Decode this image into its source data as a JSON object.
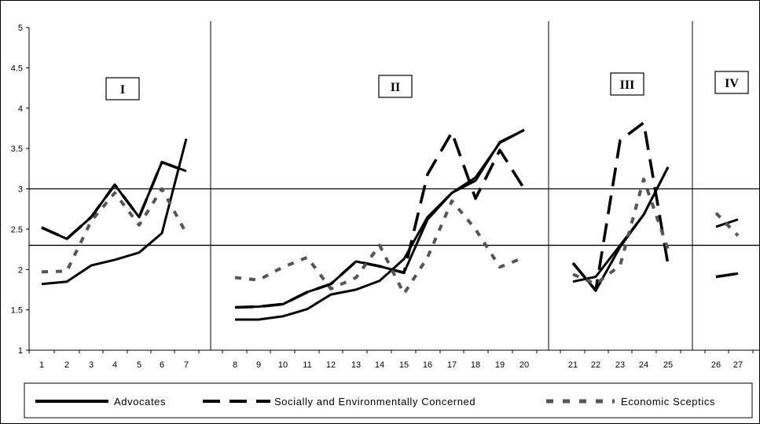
{
  "chart_data": {
    "type": "line",
    "title": "",
    "xlabel": "",
    "ylabel": "",
    "ylim": [
      1,
      5
    ],
    "yticks": [
      "1",
      "1.5",
      "2",
      "2.5",
      "3",
      "3.5",
      "4",
      "4.5",
      "5"
    ],
    "x_ticks": [
      "1",
      "2",
      "3",
      "4",
      "5",
      "6",
      "7",
      "8",
      "9",
      "10",
      "11",
      "12",
      "13",
      "14",
      "15",
      "16",
      "17",
      "18",
      "19",
      "20",
      "21",
      "22",
      "23",
      "24",
      "25",
      "26",
      "27"
    ],
    "reference_lines": [
      2.3,
      3.0
    ],
    "sections": [
      {
        "label": "I",
        "from": 1,
        "to": 7
      },
      {
        "label": "II",
        "from": 8,
        "to": 20
      },
      {
        "label": "III",
        "from": 21,
        "to": 25
      },
      {
        "label": "IV",
        "from": 26,
        "to": 27
      }
    ],
    "series": [
      {
        "name": "Advocates",
        "color": "#000000",
        "dash": "solid",
        "segments": [
          {
            "x": [
              1,
              2,
              3,
              4,
              5,
              6,
              7
            ],
            "y": [
              1.82,
              1.85,
              2.05,
              2.12,
              2.21,
              2.45,
              3.62
            ]
          },
          {
            "x": [
              1,
              2,
              3,
              4,
              5,
              6,
              7
            ],
            "y": [
              2.52,
              2.38,
              2.65,
              3.05,
              2.65,
              3.33,
              3.22
            ]
          },
          {
            "x": [
              8,
              9,
              10,
              11,
              12,
              13,
              14,
              15,
              16,
              17,
              18,
              19,
              20
            ],
            "y": [
              1.53,
              1.54,
              1.57,
              1.72,
              1.82,
              2.1,
              2.04,
              1.96,
              2.62,
              2.95,
              3.1,
              3.58,
              3.73
            ]
          },
          {
            "x": [
              8,
              9,
              10,
              11,
              12,
              13,
              14,
              15,
              16,
              17,
              18,
              19,
              20
            ],
            "y": [
              1.38,
              1.38,
              1.42,
              1.51,
              1.69,
              1.75,
              1.86,
              2.13,
              2.65,
              2.95,
              3.14,
              3.57,
              3.73
            ]
          },
          {
            "x": [
              21,
              22,
              23,
              24,
              25
            ],
            "y": [
              1.85,
              1.91,
              2.3,
              2.68,
              3.27
            ]
          },
          {
            "x": [
              21,
              22,
              23,
              24,
              25
            ],
            "y": [
              2.08,
              1.74,
              2.28,
              2.68,
              3.27
            ]
          },
          {
            "x": [
              26,
              27
            ],
            "y": [
              1.91,
              1.95
            ]
          },
          {
            "x": [
              26,
              27
            ],
            "y": [
              2.53,
              2.62
            ]
          }
        ]
      },
      {
        "name": "Socially and Environmentally Concerned",
        "color": "#000000",
        "dash": "long-dash",
        "segments": [
          {
            "x": [
              1,
              2,
              3,
              4,
              5,
              6,
              7
            ],
            "y": [
              2.52,
              2.38,
              2.65,
              3.05,
              2.65,
              3.33,
              3.22
            ]
          },
          {
            "x": [
              8,
              9,
              10,
              11,
              12,
              13,
              14,
              15,
              16,
              17,
              18,
              19,
              20
            ],
            "y": [
              1.53,
              1.54,
              1.57,
              1.72,
              1.82,
              2.1,
              2.04,
              1.96,
              3.18,
              3.7,
              2.88,
              3.48,
              3.0
            ]
          },
          {
            "x": [
              21,
              22,
              23,
              24,
              25
            ],
            "y": [
              2.08,
              1.74,
              3.6,
              3.82,
              2.06
            ]
          },
          {
            "x": [
              26,
              27
            ],
            "y": [
              1.91,
              1.95
            ]
          }
        ]
      },
      {
        "name": "Economic Sceptics",
        "color": "#555555",
        "dash": "short-dash",
        "segments": [
          {
            "x": [
              1,
              2,
              3,
              4,
              5,
              6,
              7
            ],
            "y": [
              1.97,
              1.98,
              2.6,
              2.95,
              2.55,
              3.0,
              2.45
            ]
          },
          {
            "x": [
              8,
              9,
              10,
              11,
              12,
              13,
              14,
              15,
              16,
              17,
              18,
              19,
              20
            ],
            "y": [
              1.9,
              1.87,
              2.03,
              2.15,
              1.76,
              1.9,
              2.3,
              1.7,
              2.15,
              2.85,
              2.5,
              2.03,
              2.15
            ]
          },
          {
            "x": [
              21,
              22,
              23,
              24,
              25
            ],
            "y": [
              1.94,
              1.82,
              2.05,
              3.12,
              2.25
            ]
          },
          {
            "x": [
              26,
              27
            ],
            "y": [
              2.7,
              2.42
            ]
          }
        ]
      }
    ]
  },
  "legend": {
    "items": [
      {
        "label": "Advocates"
      },
      {
        "label": "Socially and Environmentally Concerned"
      },
      {
        "label": "Economic Sceptics"
      }
    ]
  }
}
